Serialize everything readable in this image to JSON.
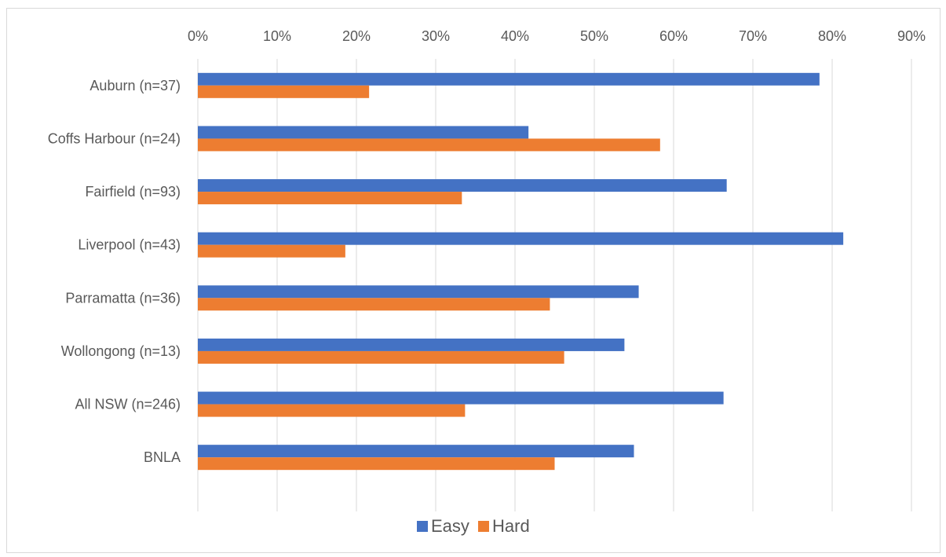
{
  "chart_data": {
    "type": "bar",
    "orientation": "horizontal",
    "categories": [
      "Auburn (n=37)",
      "Coffs Harbour (n=24)",
      "Fairfield (n=93)",
      "Liverpool (n=43)",
      "Parramatta (n=36)",
      "Wollongong (n=13)",
      "All NSW (n=246)",
      "BNLA"
    ],
    "series": [
      {
        "name": "Easy",
        "color": "#4472c4",
        "values": [
          78.4,
          41.7,
          66.7,
          81.4,
          55.6,
          53.8,
          66.3,
          55.0
        ]
      },
      {
        "name": "Hard",
        "color": "#ed7d31",
        "values": [
          21.6,
          58.3,
          33.3,
          18.6,
          44.4,
          46.2,
          33.7,
          45.0
        ]
      }
    ],
    "xlim": [
      0,
      90
    ],
    "x_ticks": [
      "0%",
      "10%",
      "20%",
      "30%",
      "40%",
      "50%",
      "60%",
      "70%",
      "80%",
      "90%"
    ],
    "x_tick_values": [
      0,
      10,
      20,
      30,
      40,
      50,
      60,
      70,
      80,
      90
    ],
    "x_axis_position": "top",
    "grid": true,
    "legend_position": "bottom",
    "title": "",
    "xlabel": "",
    "ylabel": ""
  }
}
